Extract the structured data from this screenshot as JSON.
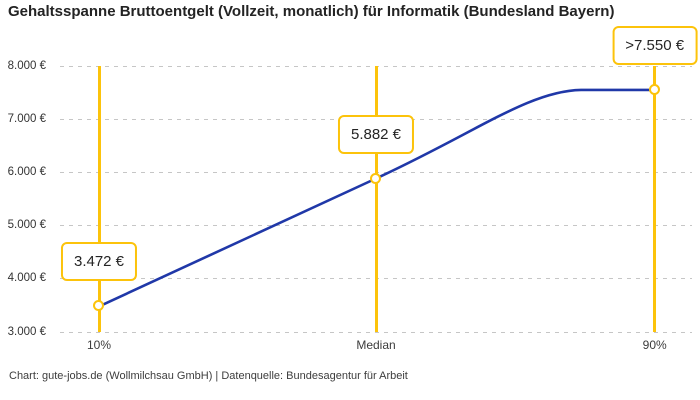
{
  "chart_data": {
    "type": "line",
    "title": "Gehaltsspanne Bruttoentgelt (Vollzeit, monatlich) für Informatik (Bundesland Bayern)",
    "categories": [
      "10%",
      "Median",
      "90%"
    ],
    "values": [
      3472,
      5882,
      7550
    ],
    "point_labels": [
      "3.472 €",
      "5.882 €",
      ">7.550 €"
    ],
    "ylim": [
      3000,
      8000
    ],
    "yticks": [
      {
        "value": 8000,
        "label": "8.000 €"
      },
      {
        "value": 7000,
        "label": "7.000 €"
      },
      {
        "value": 6000,
        "label": "6.000 €"
      },
      {
        "value": 5000,
        "label": "5.000 €"
      },
      {
        "value": 4000,
        "label": "4.000 €"
      },
      {
        "value": 3000,
        "label": "3.000 €"
      }
    ],
    "grid": "horizontal-dashed",
    "legend": "none",
    "colors": {
      "line": "#2038a8",
      "highlight": "#fcc30b",
      "grid": "#c6c6c6",
      "text": "#232323"
    },
    "source": "Chart: gute-jobs.de (Wollmilchsau GmbH) | Datenquelle: Bundesagentur für Arbeit"
  }
}
